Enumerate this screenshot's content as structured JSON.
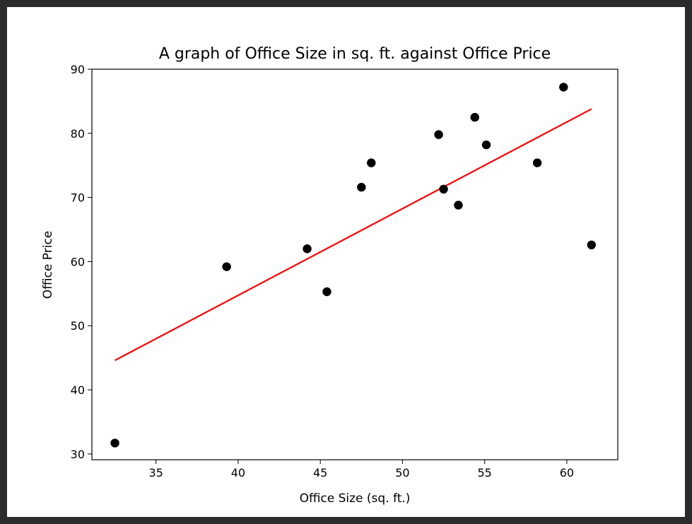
{
  "chart_data": {
    "type": "scatter",
    "title": "A graph of Office Size in sq. ft. against Office Price",
    "xlabel": "Office Size (sq. ft.)",
    "ylabel": "Office Price",
    "xlim": [
      31.1,
      63.1
    ],
    "ylim": [
      29.1,
      90.0
    ],
    "xticks": [
      35,
      40,
      45,
      50,
      55,
      60
    ],
    "yticks": [
      30,
      40,
      50,
      60,
      70,
      80,
      90
    ],
    "grid": false,
    "colors": {
      "points": "#000000",
      "fit_line": "#ff0000"
    },
    "series": [
      {
        "type": "scatter",
        "x": [
          32.5,
          39.3,
          44.2,
          45.4,
          47.5,
          48.1,
          52.2,
          52.5,
          53.4,
          54.4,
          55.1,
          58.2,
          59.8,
          61.5
        ],
        "y": [
          31.7,
          59.2,
          62.0,
          55.3,
          71.6,
          75.4,
          79.8,
          71.3,
          68.8,
          82.5,
          78.2,
          75.4,
          87.2,
          62.6
        ]
      },
      {
        "type": "line",
        "x": [
          32.5,
          61.5
        ],
        "y": [
          44.6,
          83.8
        ]
      }
    ]
  }
}
